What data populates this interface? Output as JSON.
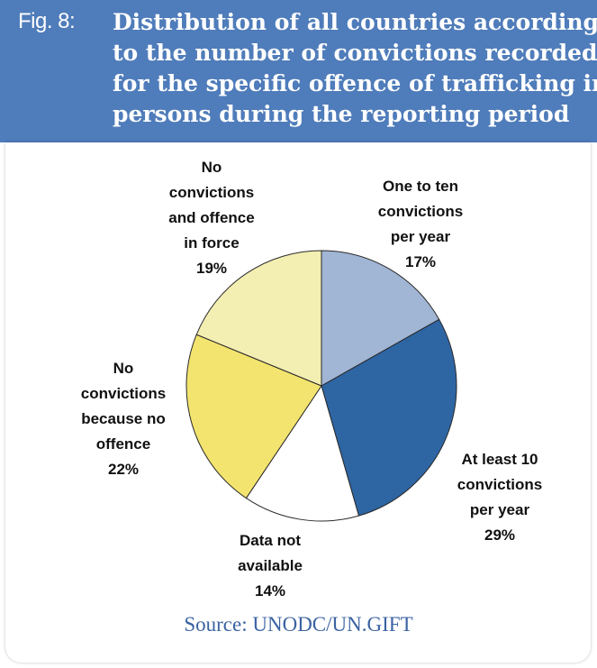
{
  "figure": {
    "label": "Fig. 8:",
    "title_lines": [
      "Distribution of all countries according",
      "to the number of convictions recorded",
      "for the specific offence of trafficking in",
      "persons during the reporting period"
    ],
    "source": "Source: UNODC/UN.GIFT"
  },
  "colors": {
    "header": "#4f7cba",
    "source_text": "#3b63a3"
  },
  "chart_data": {
    "type": "pie",
    "title": "Distribution of all countries according to the number of convictions recorded for the specific offence of trafficking in persons during the reporting period",
    "slices": [
      {
        "label_lines": [
          "One to ten",
          "convictions",
          "per year"
        ],
        "value": 17,
        "pct": "17%",
        "color": "#a1b5d5"
      },
      {
        "label_lines": [
          "At least 10",
          "convictions",
          "per year"
        ],
        "value": 29,
        "pct": "29%",
        "color": "#2e65a3"
      },
      {
        "label_lines": [
          "Data not",
          "available"
        ],
        "value": 14,
        "pct": "14%",
        "color": "#ffffff"
      },
      {
        "label_lines": [
          "No",
          "convictions",
          "because no",
          "offence"
        ],
        "value": 22,
        "pct": "22%",
        "color": "#f3e46f"
      },
      {
        "label_lines": [
          "No",
          "convictions",
          "and offence",
          "in force"
        ],
        "value": 19,
        "pct": "19%",
        "color": "#f3eeb2"
      }
    ]
  }
}
